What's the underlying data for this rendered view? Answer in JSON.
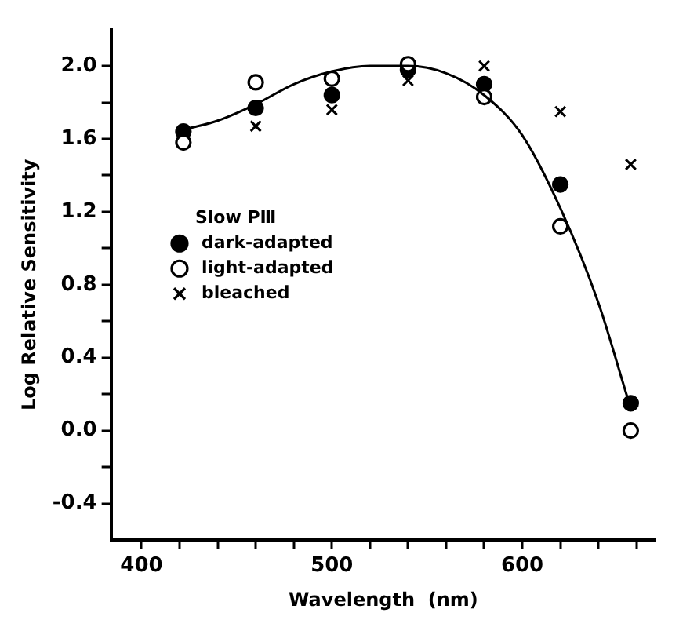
{
  "chart_data": {
    "type": "scatter",
    "xlabel": "Wavelength  (nm)",
    "ylabel": "Log Relative Sensitivity",
    "legend_title": "Slow PⅢ",
    "x": [
      422,
      460,
      500,
      540,
      580,
      620,
      657
    ],
    "series": [
      {
        "name": "dark-adapted",
        "type": "scatter",
        "marker": "circle",
        "color": "#000000",
        "values": [
          1.64,
          1.77,
          1.84,
          1.98,
          1.9,
          1.35,
          0.15
        ]
      },
      {
        "name": "light-adapted",
        "type": "scatter",
        "marker": "circle",
        "color": "#ffffff",
        "values": [
          1.58,
          1.91,
          1.93,
          2.01,
          1.83,
          1.12,
          0.0
        ]
      },
      {
        "name": "bleached",
        "type": "scatter",
        "marker": "cross",
        "color": "#000000",
        "values": [
          null,
          1.67,
          1.76,
          1.92,
          2.0,
          1.75,
          1.46
        ]
      },
      {
        "type": "line",
        "marker": "none",
        "color": "#000000",
        "x": [
          422,
          440,
          460,
          480,
          500,
          520,
          540,
          560,
          580,
          600,
          620,
          640,
          655
        ],
        "values": [
          1.65,
          1.7,
          1.79,
          1.9,
          1.97,
          2.0,
          2.0,
          1.96,
          1.84,
          1.62,
          1.22,
          0.7,
          0.19
        ]
      }
    ],
    "xlim": [
      384,
      670
    ],
    "xticks": [
      400,
      {
        "value": 420,
        "label": null
      },
      {
        "value": 440,
        "label": null
      },
      {
        "value": 460,
        "label": null
      },
      {
        "value": 480,
        "label": null
      },
      500,
      {
        "value": 520,
        "label": null
      },
      {
        "value": 540,
        "label": null
      },
      {
        "value": 560,
        "label": null
      },
      {
        "value": 580,
        "label": null
      },
      600,
      {
        "value": 620,
        "label": null
      },
      {
        "value": 640,
        "label": null
      },
      {
        "value": 660,
        "label": null
      }
    ],
    "ylim": [
      -0.6,
      2.2
    ],
    "yticks": [
      {
        "value": -0.4,
        "label": "-0.4"
      },
      {
        "value": -0.2,
        "label": null
      },
      {
        "value": 0,
        "label": "0.0"
      },
      {
        "value": 0.2,
        "label": null
      },
      {
        "value": 0.4,
        "label": "0.4"
      },
      {
        "value": 0.6,
        "label": null
      },
      {
        "value": 0.8,
        "label": "0.8"
      },
      {
        "value": 1.0,
        "label": null
      },
      {
        "value": 1.2,
        "label": "1.2"
      },
      {
        "value": 1.4,
        "label": null
      },
      {
        "value": 1.6,
        "label": "1.6"
      },
      {
        "value": 1.8,
        "label": null
      },
      {
        "value": 2.0,
        "label": "2.0"
      }
    ],
    "grid": false,
    "legend": "left"
  }
}
